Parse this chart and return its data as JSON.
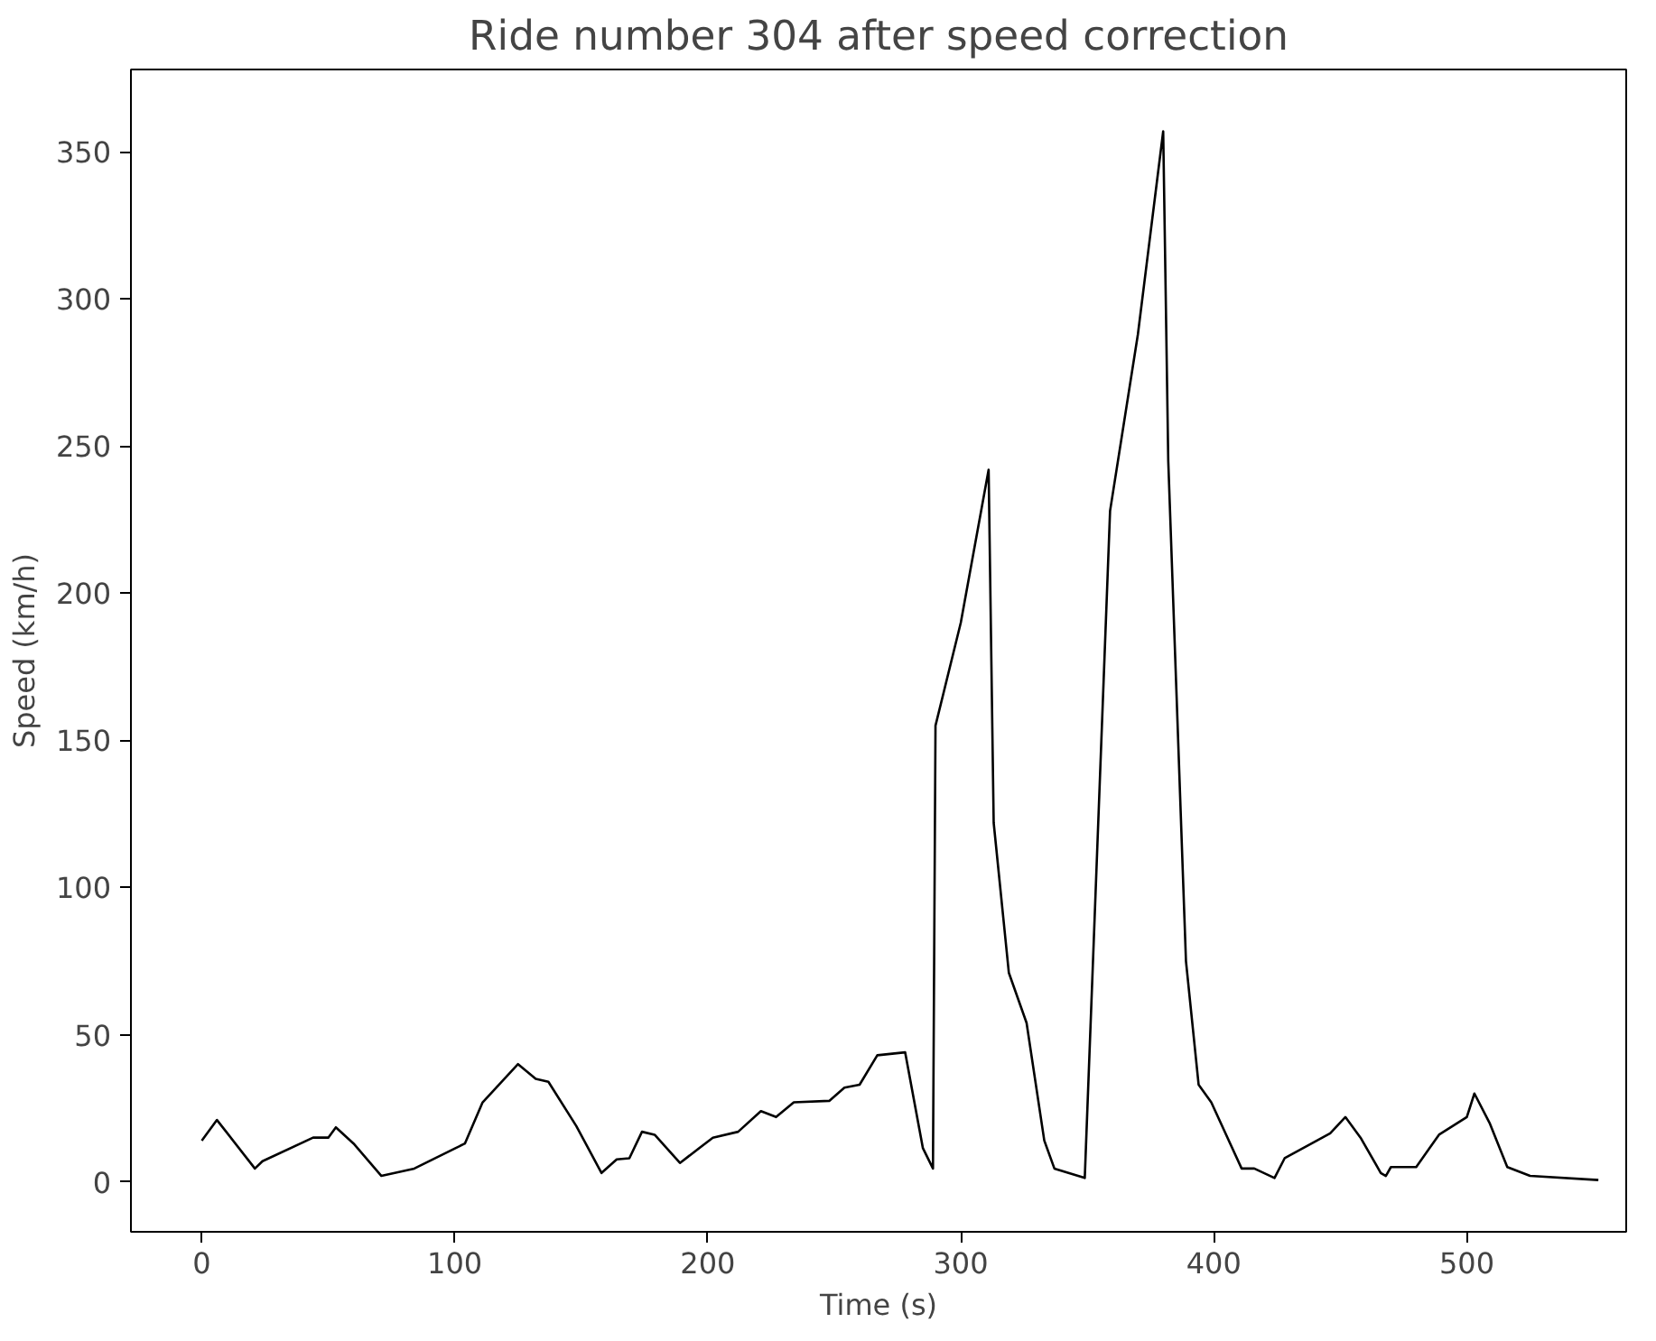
{
  "chart_data": {
    "type": "line",
    "title": "Ride number 304 after speed correction",
    "xlabel": "Time (s)",
    "ylabel": "Speed (km/h)",
    "xlim": [
      -28,
      563
    ],
    "ylim": [
      -17,
      378
    ],
    "xticks": [
      0,
      100,
      200,
      300,
      400,
      500
    ],
    "yticks": [
      0,
      50,
      100,
      150,
      200,
      250,
      300,
      350
    ],
    "grid": false,
    "marker": "none",
    "line_style": "solid",
    "series": [
      {
        "color": "#000000",
        "x": [
          0,
          6,
          21,
          24,
          44,
          50,
          53,
          60,
          71,
          84,
          104,
          111,
          125,
          132,
          137,
          148,
          158,
          164,
          169,
          174,
          179,
          189,
          202,
          212,
          221,
          227,
          234,
          248,
          254,
          260,
          267,
          278,
          285,
          289,
          290,
          300,
          311,
          313,
          319,
          326,
          333,
          337,
          349,
          359,
          370,
          380,
          382,
          389,
          394,
          399,
          411,
          416,
          424,
          428,
          446,
          452,
          458,
          466,
          468,
          470,
          480,
          489,
          500,
          503,
          509,
          516,
          525,
          552
        ],
        "values": [
          14,
          21,
          4.5,
          7,
          15,
          15,
          18.5,
          13,
          2,
          4.5,
          13,
          27,
          40,
          35,
          34,
          19,
          3,
          7.6,
          8,
          17,
          16,
          6.4,
          15,
          17,
          24,
          22,
          27,
          27.5,
          32,
          33,
          43,
          44,
          11.5,
          4.5,
          155,
          190,
          242,
          122,
          71,
          54,
          14,
          4.5,
          1.3,
          228,
          288,
          357,
          245,
          75,
          33,
          27,
          4.5,
          4.5,
          1.3,
          8,
          16.5,
          22,
          15,
          3,
          2,
          5,
          5,
          16,
          22,
          30,
          20,
          5,
          2,
          0.6
        ]
      }
    ]
  }
}
